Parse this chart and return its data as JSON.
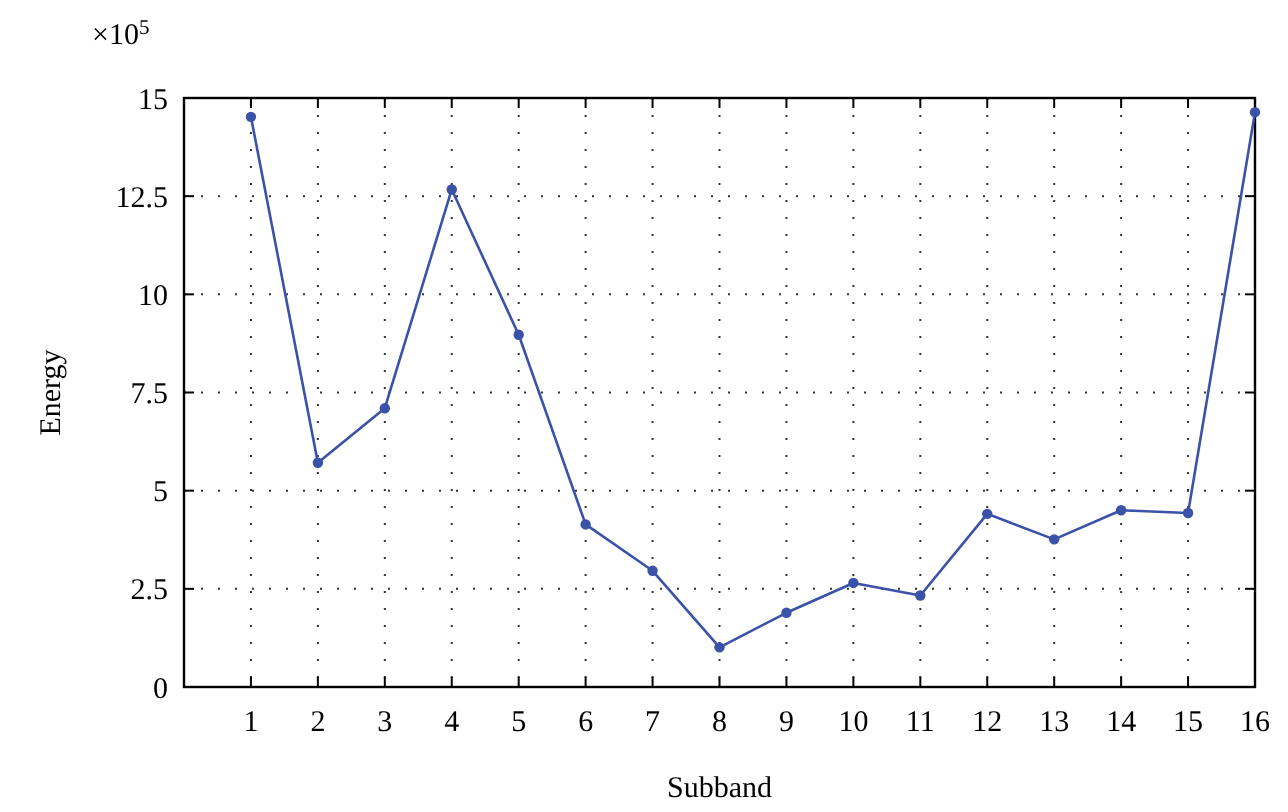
{
  "chart_data": {
    "type": "line",
    "xlabel": "Subband",
    "ylabel": "Energy",
    "annotations": [
      "×10$^{5}$"
    ],
    "x": [
      1,
      2,
      3,
      4,
      5,
      6,
      7,
      8,
      9,
      10,
      11,
      12,
      13,
      14,
      15,
      16
    ],
    "series": [
      {
        "color": "#3a52a8",
        "values": [
          14.52,
          5.71,
          7.1,
          12.67,
          8.97,
          4.14,
          2.96,
          1.01,
          1.89,
          2.65,
          2.33,
          4.41,
          3.76,
          4.5,
          4.43,
          14.64
        ]
      }
    ],
    "xlim": [
      0,
      16
    ],
    "xticks": [
      1,
      2,
      3,
      4,
      5,
      6,
      7,
      8,
      9,
      10,
      11,
      12,
      13,
      14,
      15,
      16
    ],
    "ylim": [
      0,
      15
    ],
    "yticks": [
      0,
      2.5,
      5,
      7.5,
      10,
      12.5,
      15
    ],
    "grid": true,
    "marker": "circle",
    "line_style": "solid"
  }
}
